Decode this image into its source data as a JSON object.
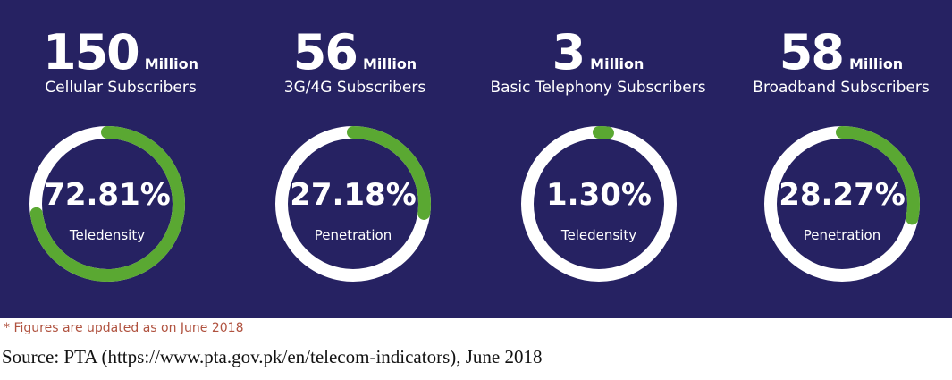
{
  "colors": {
    "background": "#262262",
    "ring": "#ffffff",
    "arc": "#5aa832",
    "note": "#b0523f"
  },
  "chart_data": {
    "type": "donut",
    "metrics": [
      {
        "number": "150",
        "unit": "Million",
        "description": "Cellular Subscribers",
        "percent_text": "72.81%",
        "percent": 72.81,
        "label": "Teledensity"
      },
      {
        "number": "56",
        "unit": "Million",
        "description": "3G/4G Subscribers",
        "percent_text": "27.18%",
        "percent": 27.18,
        "label": "Penetration"
      },
      {
        "number": "3",
        "unit": "Million",
        "description": "Basic Telephony Subscribers",
        "percent_text": "1.30%",
        "percent": 1.3,
        "label": "Teledensity"
      },
      {
        "number": "58",
        "unit": "Million",
        "description": "Broadband Subscribers",
        "percent_text": "28.27%",
        "percent": 28.27,
        "label": "Penetration"
      }
    ]
  },
  "footnote": "* Figures are updated as on June 2018",
  "source": "Source: PTA (https://www.pta.gov.pk/en/telecom-indicators), June 2018"
}
